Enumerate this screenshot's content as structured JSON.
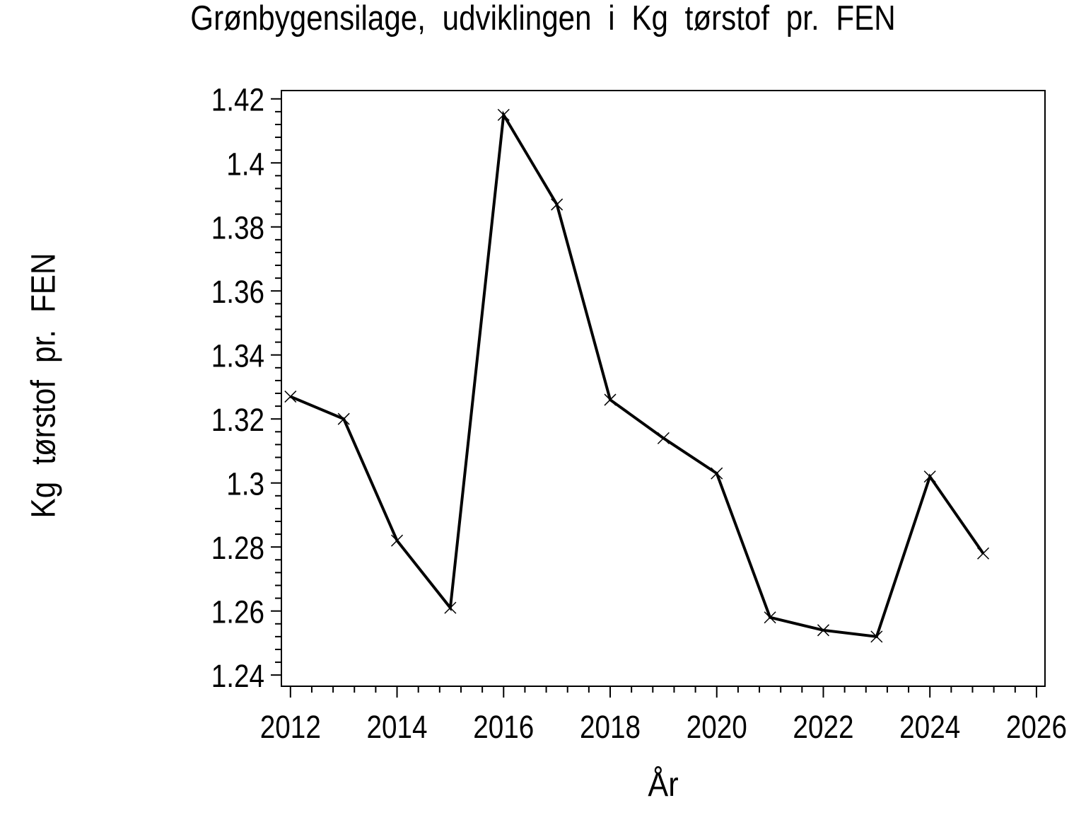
{
  "chart_data": {
    "type": "line",
    "title": "Grønbygensilage, udviklingen i Kg tørstof pr. FEN",
    "xlabel": "År",
    "ylabel": "Kg tørstof pr. FEN",
    "x": [
      2012,
      2013,
      2014,
      2015,
      2016,
      2017,
      2018,
      2019,
      2020,
      2021,
      2022,
      2023,
      2024,
      2025
    ],
    "values": [
      1.327,
      1.32,
      1.282,
      1.261,
      1.415,
      1.387,
      1.326,
      1.314,
      1.303,
      1.258,
      1.254,
      1.252,
      1.302,
      1.278
    ],
    "xlim": [
      2011.83,
      2026.16
    ],
    "ylim": [
      1.2365,
      1.4226
    ],
    "x_major_ticks": [
      2012,
      2014,
      2016,
      2018,
      2020,
      2022,
      2024,
      2026
    ],
    "x_tick_labels": [
      "2012",
      "2014",
      "2016",
      "2018",
      "2020",
      "2022",
      "2024",
      "2026"
    ],
    "y_major_ticks": [
      1.24,
      1.26,
      1.28,
      1.3,
      1.32,
      1.34,
      1.36,
      1.38,
      1.4,
      1.42
    ],
    "y_tick_labels": [
      "1.24",
      "1.26",
      "1.28",
      "1.3",
      "1.32",
      "1.34",
      "1.36",
      "1.38",
      "1.4",
      "1.42"
    ],
    "minor_ticks_per_interval": 4,
    "grid": false,
    "legend": "none",
    "marker": "x",
    "line_color": "#000000",
    "background_color": "#ffffff"
  }
}
